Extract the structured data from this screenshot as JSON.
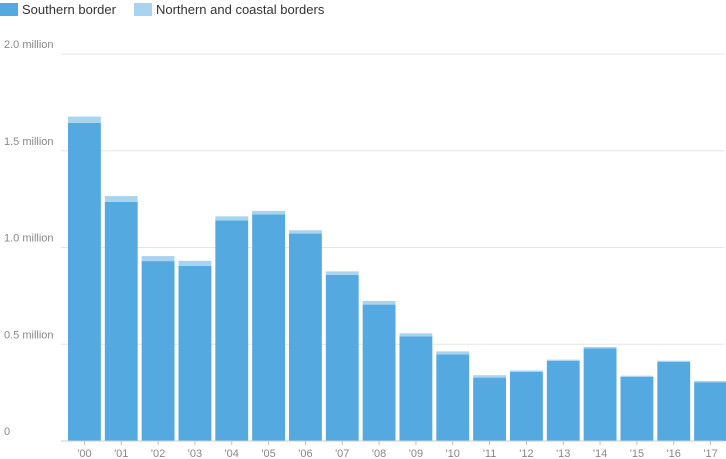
{
  "chart_data": {
    "type": "bar",
    "stacked": true,
    "categories": [
      "'00",
      "'01",
      "'02",
      "'03",
      "'04",
      "'05",
      "'06",
      "'07",
      "'08",
      "'09",
      "'10",
      "'11",
      "'12",
      "'13",
      "'14",
      "'15",
      "'16",
      "'17"
    ],
    "series": [
      {
        "name": "Southern border",
        "color": "#53a9e0",
        "values": [
          1643679,
          1235718,
          929809,
          905065,
          1139282,
          1171396,
          1071972,
          858638,
          705005,
          540865,
          447731,
          327577,
          356873,
          414397,
          479371,
          331333,
          408870,
          303916
        ]
      },
      {
        "name": "Northern and coastal borders",
        "color": "#a9d4ef",
        "values": [
          32759,
          30087,
          25750,
          26148,
          21582,
          17796,
          17091,
          18015,
          18561,
          15554,
          15458,
          12523,
          7664,
          6016,
          7009,
          6022,
          6246,
          6310
        ]
      }
    ],
    "y_ticks": [
      {
        "value": 0,
        "label": "0"
      },
      {
        "value": 500000,
        "label": "0.5 million"
      },
      {
        "value": 1000000,
        "label": "1.0 million"
      },
      {
        "value": 1500000,
        "label": "1.5 million"
      },
      {
        "value": 2000000,
        "label": "2.0 million"
      }
    ],
    "ylim": [
      0,
      2000000
    ],
    "grid": true,
    "legend_position": "top-left",
    "title": "",
    "xlabel": "",
    "ylabel": ""
  }
}
